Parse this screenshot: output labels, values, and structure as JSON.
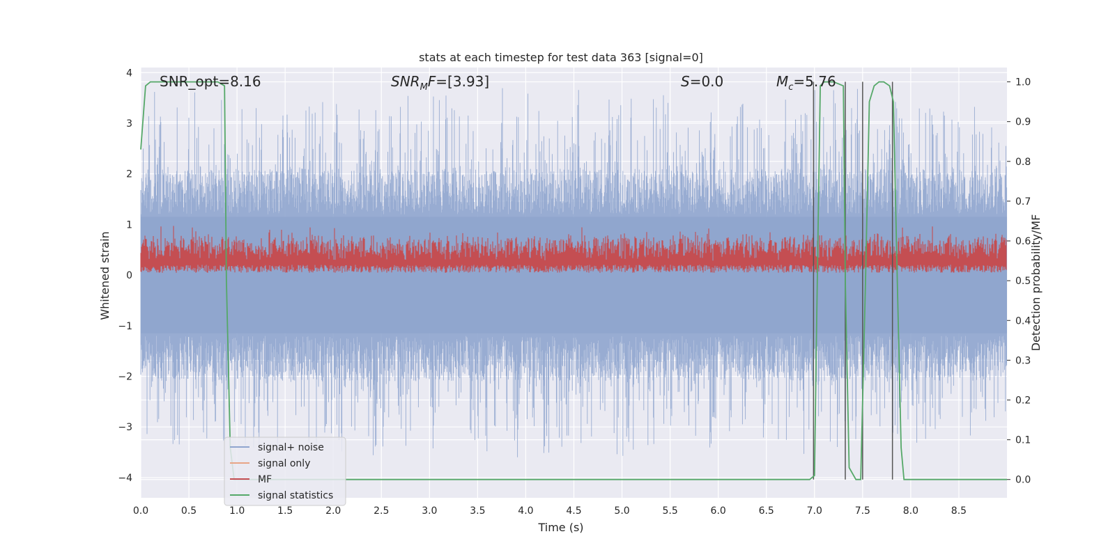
{
  "chart_data": {
    "type": "line",
    "title": "stats at each timestep for test data 363 [signal=0]",
    "xlabel": "Time (s)",
    "ylabel": "Whitened strain",
    "y2label": "Detection probability/MF",
    "xlim": [
      0.0,
      9.0
    ],
    "ylim": [
      -4.4,
      4.1
    ],
    "y2lim": [
      -0.046,
      1.036
    ],
    "xticks": [
      "0.0",
      "0.5",
      "1.0",
      "1.5",
      "2.0",
      "2.5",
      "3.0",
      "3.5",
      "4.0",
      "4.5",
      "5.0",
      "5.5",
      "6.0",
      "6.5",
      "7.0",
      "7.5",
      "8.0",
      "8.5"
    ],
    "yticks": [
      "4",
      "3",
      "2",
      "1",
      "0",
      "−1",
      "−2",
      "−3",
      "−4"
    ],
    "y2ticks": [
      "1.0",
      "0.9",
      "0.8",
      "0.7",
      "0.6",
      "0.5",
      "0.4",
      "0.3",
      "0.2",
      "0.1",
      "0.0"
    ],
    "grid": true,
    "legend_position": "lower-left",
    "annotations": [
      {
        "text": "SNR_opt=8.16",
        "x": 0.2
      },
      {
        "text": "SNR_MF=[3.93]",
        "x": 2.62
      },
      {
        "text": "S=0.0",
        "x": 5.63
      },
      {
        "text": "M_c=5.76",
        "x": 6.63
      }
    ],
    "series": [
      {
        "name": "signal+ noise",
        "color": "#8fa5ce",
        "noise_amplitude_envelope": [
          -3.9,
          3.7
        ]
      },
      {
        "name": "signal only",
        "color": "#e8a585",
        "values": []
      },
      {
        "name": "MF",
        "color": "#c44e52",
        "band_y2": [
          0.52,
          0.62
        ]
      },
      {
        "name": "signal statistics",
        "color": "#55a868",
        "x": [
          0.0,
          0.05,
          0.1,
          0.2,
          0.3,
          0.5,
          0.7,
          0.8,
          0.87,
          0.89,
          0.93,
          0.97,
          1.05,
          2.0,
          3.0,
          4.0,
          5.0,
          6.0,
          6.95,
          7.0,
          7.02,
          7.06,
          7.1,
          7.2,
          7.3,
          7.32,
          7.36,
          7.43,
          7.48,
          7.53,
          7.57,
          7.62,
          7.67,
          7.72,
          7.78,
          7.82,
          7.86,
          7.9,
          7.93,
          8.0,
          8.5,
          9.0
        ],
        "y2": [
          0.83,
          0.99,
          1.0,
          1.0,
          1.0,
          1.0,
          1.0,
          1.0,
          0.99,
          0.5,
          0.08,
          0.0,
          0.0,
          0.0,
          0.0,
          0.0,
          0.0,
          0.0,
          0.0,
          0.01,
          0.35,
          0.99,
          1.0,
          1.0,
          0.99,
          0.5,
          0.03,
          0.0,
          0.0,
          0.5,
          0.95,
          0.99,
          1.0,
          1.0,
          0.99,
          0.95,
          0.5,
          0.08,
          0.0,
          0.0,
          0.0,
          0.0
        ]
      }
    ],
    "vertical_markers_x": [
      6.99,
      7.32,
      7.5,
      7.81
    ]
  },
  "legend": {
    "items": [
      {
        "label": "signal+ noise",
        "color": "#8fa5ce"
      },
      {
        "label": "signal only",
        "color": "#e8a585"
      },
      {
        "label": "MF",
        "color": "#c44e52"
      },
      {
        "label": "signal statistics",
        "color": "#55a868"
      }
    ]
  },
  "colors": {
    "plot_background": "#eaeaf2",
    "grid": "#ffffff"
  }
}
